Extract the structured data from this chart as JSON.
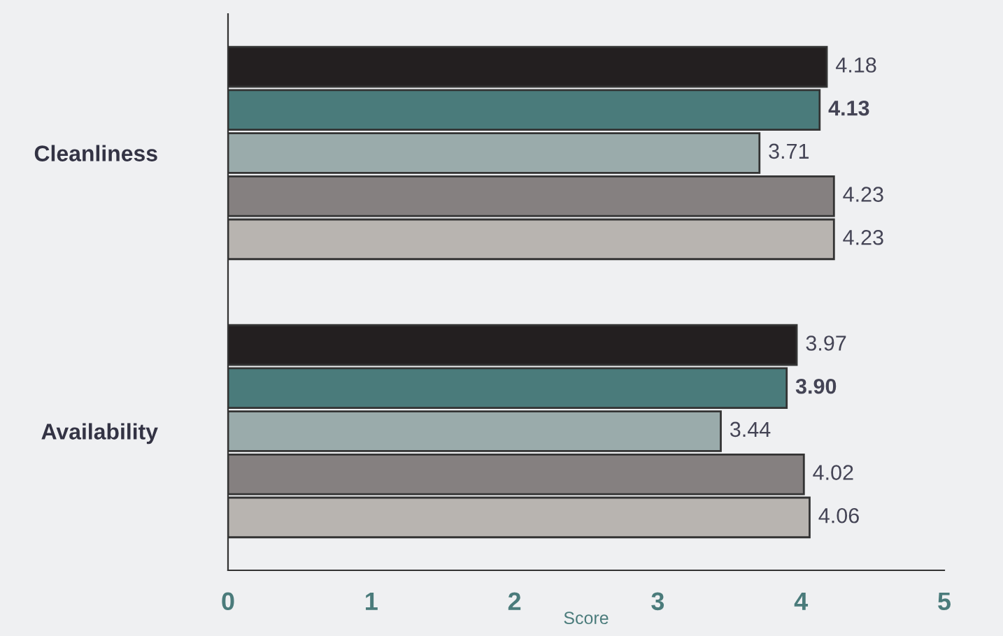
{
  "chart_data": {
    "type": "bar",
    "orientation": "horizontal",
    "xlabel": "Score",
    "categories": [
      "Cleanliness",
      "Availability"
    ],
    "series": [
      {
        "color": "#231f20",
        "values": [
          4.18,
          3.97
        ],
        "value_labels": [
          "4.18",
          "3.97"
        ]
      },
      {
        "color": "#4a7b7b",
        "values": [
          4.13,
          3.9
        ],
        "value_labels": [
          "4.13",
          "3.90"
        ]
      },
      {
        "color": "#9aabab",
        "values": [
          3.71,
          3.44
        ],
        "value_labels": [
          "3.71",
          "3.44"
        ]
      },
      {
        "color": "#858080",
        "values": [
          4.23,
          4.02
        ],
        "value_labels": [
          "4.23",
          "4.02"
        ]
      },
      {
        "color": "#b8b4b0",
        "values": [
          4.23,
          4.06
        ],
        "value_labels": [
          "4.23",
          "4.06"
        ]
      }
    ],
    "xlim": [
      0,
      5
    ],
    "xticks": [
      0,
      1,
      2,
      3,
      4,
      5
    ],
    "grid": false,
    "legend": false
  }
}
